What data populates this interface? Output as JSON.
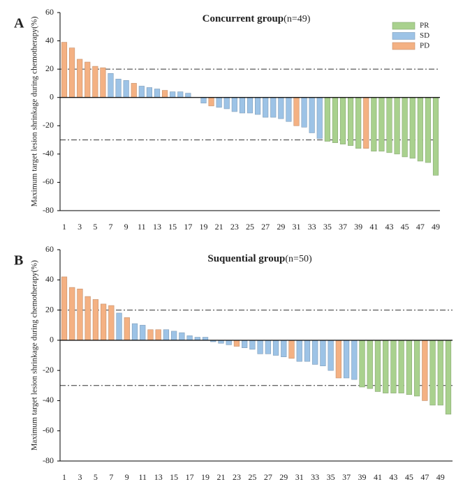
{
  "chart_data": [
    {
      "type": "bar",
      "panel": "A",
      "title": "Concurrent group",
      "title_note": "(n=49)",
      "ylabel": "Maximum target lesion shrinkage during chemotherapy(%)",
      "categories": [
        "1",
        null,
        "3",
        null,
        "5",
        null,
        "7",
        null,
        "9",
        null,
        "11",
        null,
        "13",
        null,
        "15",
        null,
        "17",
        null,
        "19",
        null,
        "21",
        null,
        "23",
        null,
        "25",
        null,
        "27",
        null,
        "29",
        null,
        "31",
        null,
        "33",
        null,
        "35",
        null,
        "37",
        null,
        "39",
        null,
        "41",
        null,
        "43",
        null,
        "45",
        null,
        "47",
        null,
        "49"
      ],
      "series": [
        {
          "name": "PR",
          "color": "#a9d18e",
          "values": [
            null,
            null,
            null,
            null,
            null,
            null,
            null,
            null,
            null,
            null,
            null,
            null,
            null,
            null,
            null,
            null,
            null,
            null,
            null,
            null,
            null,
            null,
            null,
            null,
            null,
            null,
            null,
            null,
            null,
            null,
            null,
            null,
            null,
            null,
            -31,
            -32,
            -33,
            -34,
            -36,
            null,
            -38,
            -38,
            -39,
            -40,
            -42,
            -43,
            -45,
            -46,
            -55
          ]
        },
        {
          "name": "SD",
          "color": "#9dc3e6",
          "values": [
            null,
            null,
            null,
            null,
            null,
            null,
            17,
            13,
            12,
            null,
            8,
            7,
            6,
            null,
            4,
            4,
            3,
            0,
            -4,
            null,
            -7,
            -8,
            -10,
            -11,
            -11,
            -12,
            -14,
            -14,
            -15,
            -17,
            null,
            -21,
            -25,
            -29,
            null,
            null,
            null,
            null,
            null,
            null,
            null,
            null,
            null,
            null,
            null,
            null,
            null,
            null,
            null
          ]
        },
        {
          "name": "PD",
          "color": "#f4b183",
          "values": [
            39,
            35,
            27,
            25,
            22,
            21,
            null,
            null,
            null,
            10,
            null,
            null,
            null,
            5,
            null,
            null,
            null,
            null,
            null,
            -6,
            null,
            null,
            null,
            null,
            null,
            null,
            null,
            null,
            null,
            null,
            -20,
            null,
            null,
            null,
            null,
            null,
            null,
            null,
            null,
            -36,
            null,
            null,
            null,
            null,
            null,
            null,
            null,
            null,
            null
          ]
        }
      ],
      "ylim": [
        -80,
        60
      ],
      "yticks": [
        -80,
        -60,
        -40,
        -20,
        0,
        20,
        40,
        60
      ],
      "ref_lines": [
        20,
        -30
      ],
      "legend": "upper right"
    },
    {
      "type": "bar",
      "panel": "B",
      "title": "Suquential  group",
      "title_note": "(n=50)",
      "ylabel": "Maximum target lesion shrinkage during chemotherapy(%)",
      "categories": [
        "1",
        null,
        "3",
        null,
        "5",
        null,
        "7",
        null,
        "9",
        null,
        "11",
        null,
        "13",
        null,
        "15",
        null,
        "17",
        null,
        "19",
        null,
        "21",
        null,
        "23",
        null,
        "25",
        null,
        "27",
        null,
        "29",
        null,
        "31",
        null,
        "33",
        null,
        "35",
        null,
        "37",
        null,
        "39",
        null,
        "41",
        null,
        "43",
        null,
        "45",
        null,
        "47",
        null,
        "49",
        null
      ],
      "series": [
        {
          "color": "#a9d18e",
          "values": [
            null,
            null,
            null,
            null,
            null,
            null,
            null,
            null,
            null,
            null,
            null,
            null,
            null,
            null,
            null,
            null,
            null,
            null,
            null,
            null,
            null,
            null,
            null,
            null,
            null,
            null,
            null,
            null,
            null,
            null,
            null,
            null,
            null,
            null,
            null,
            null,
            null,
            null,
            -31,
            -32,
            -34,
            -35,
            -35,
            -35,
            -36,
            -37,
            null,
            -43,
            -43,
            -49
          ]
        },
        {
          "color": "#9dc3e6",
          "values": [
            null,
            null,
            null,
            null,
            null,
            null,
            null,
            18,
            null,
            11,
            10,
            null,
            null,
            7,
            6,
            5,
            3,
            2,
            2,
            -1,
            -2,
            -3,
            null,
            -5,
            -6,
            -9,
            -9,
            -10,
            -11,
            null,
            -14,
            -14,
            -16,
            -17,
            -20,
            null,
            -25,
            -26,
            null,
            null,
            null,
            null,
            null,
            null,
            null,
            null,
            null,
            null,
            null,
            null
          ]
        },
        {
          "color": "#f4b183",
          "values": [
            42,
            35,
            34,
            29,
            27,
            24,
            23,
            null,
            15,
            null,
            null,
            7,
            7,
            null,
            null,
            null,
            null,
            null,
            null,
            null,
            null,
            null,
            -4,
            null,
            null,
            null,
            null,
            null,
            null,
            -12,
            null,
            null,
            null,
            null,
            null,
            -25,
            null,
            null,
            null,
            null,
            null,
            null,
            null,
            null,
            null,
            null,
            -40,
            null,
            null,
            null
          ]
        }
      ],
      "ylim": [
        -80,
        60
      ],
      "yticks": [
        -80,
        -60,
        -40,
        -20,
        0,
        20,
        40,
        60
      ],
      "ref_lines": [
        20,
        -30
      ]
    }
  ]
}
